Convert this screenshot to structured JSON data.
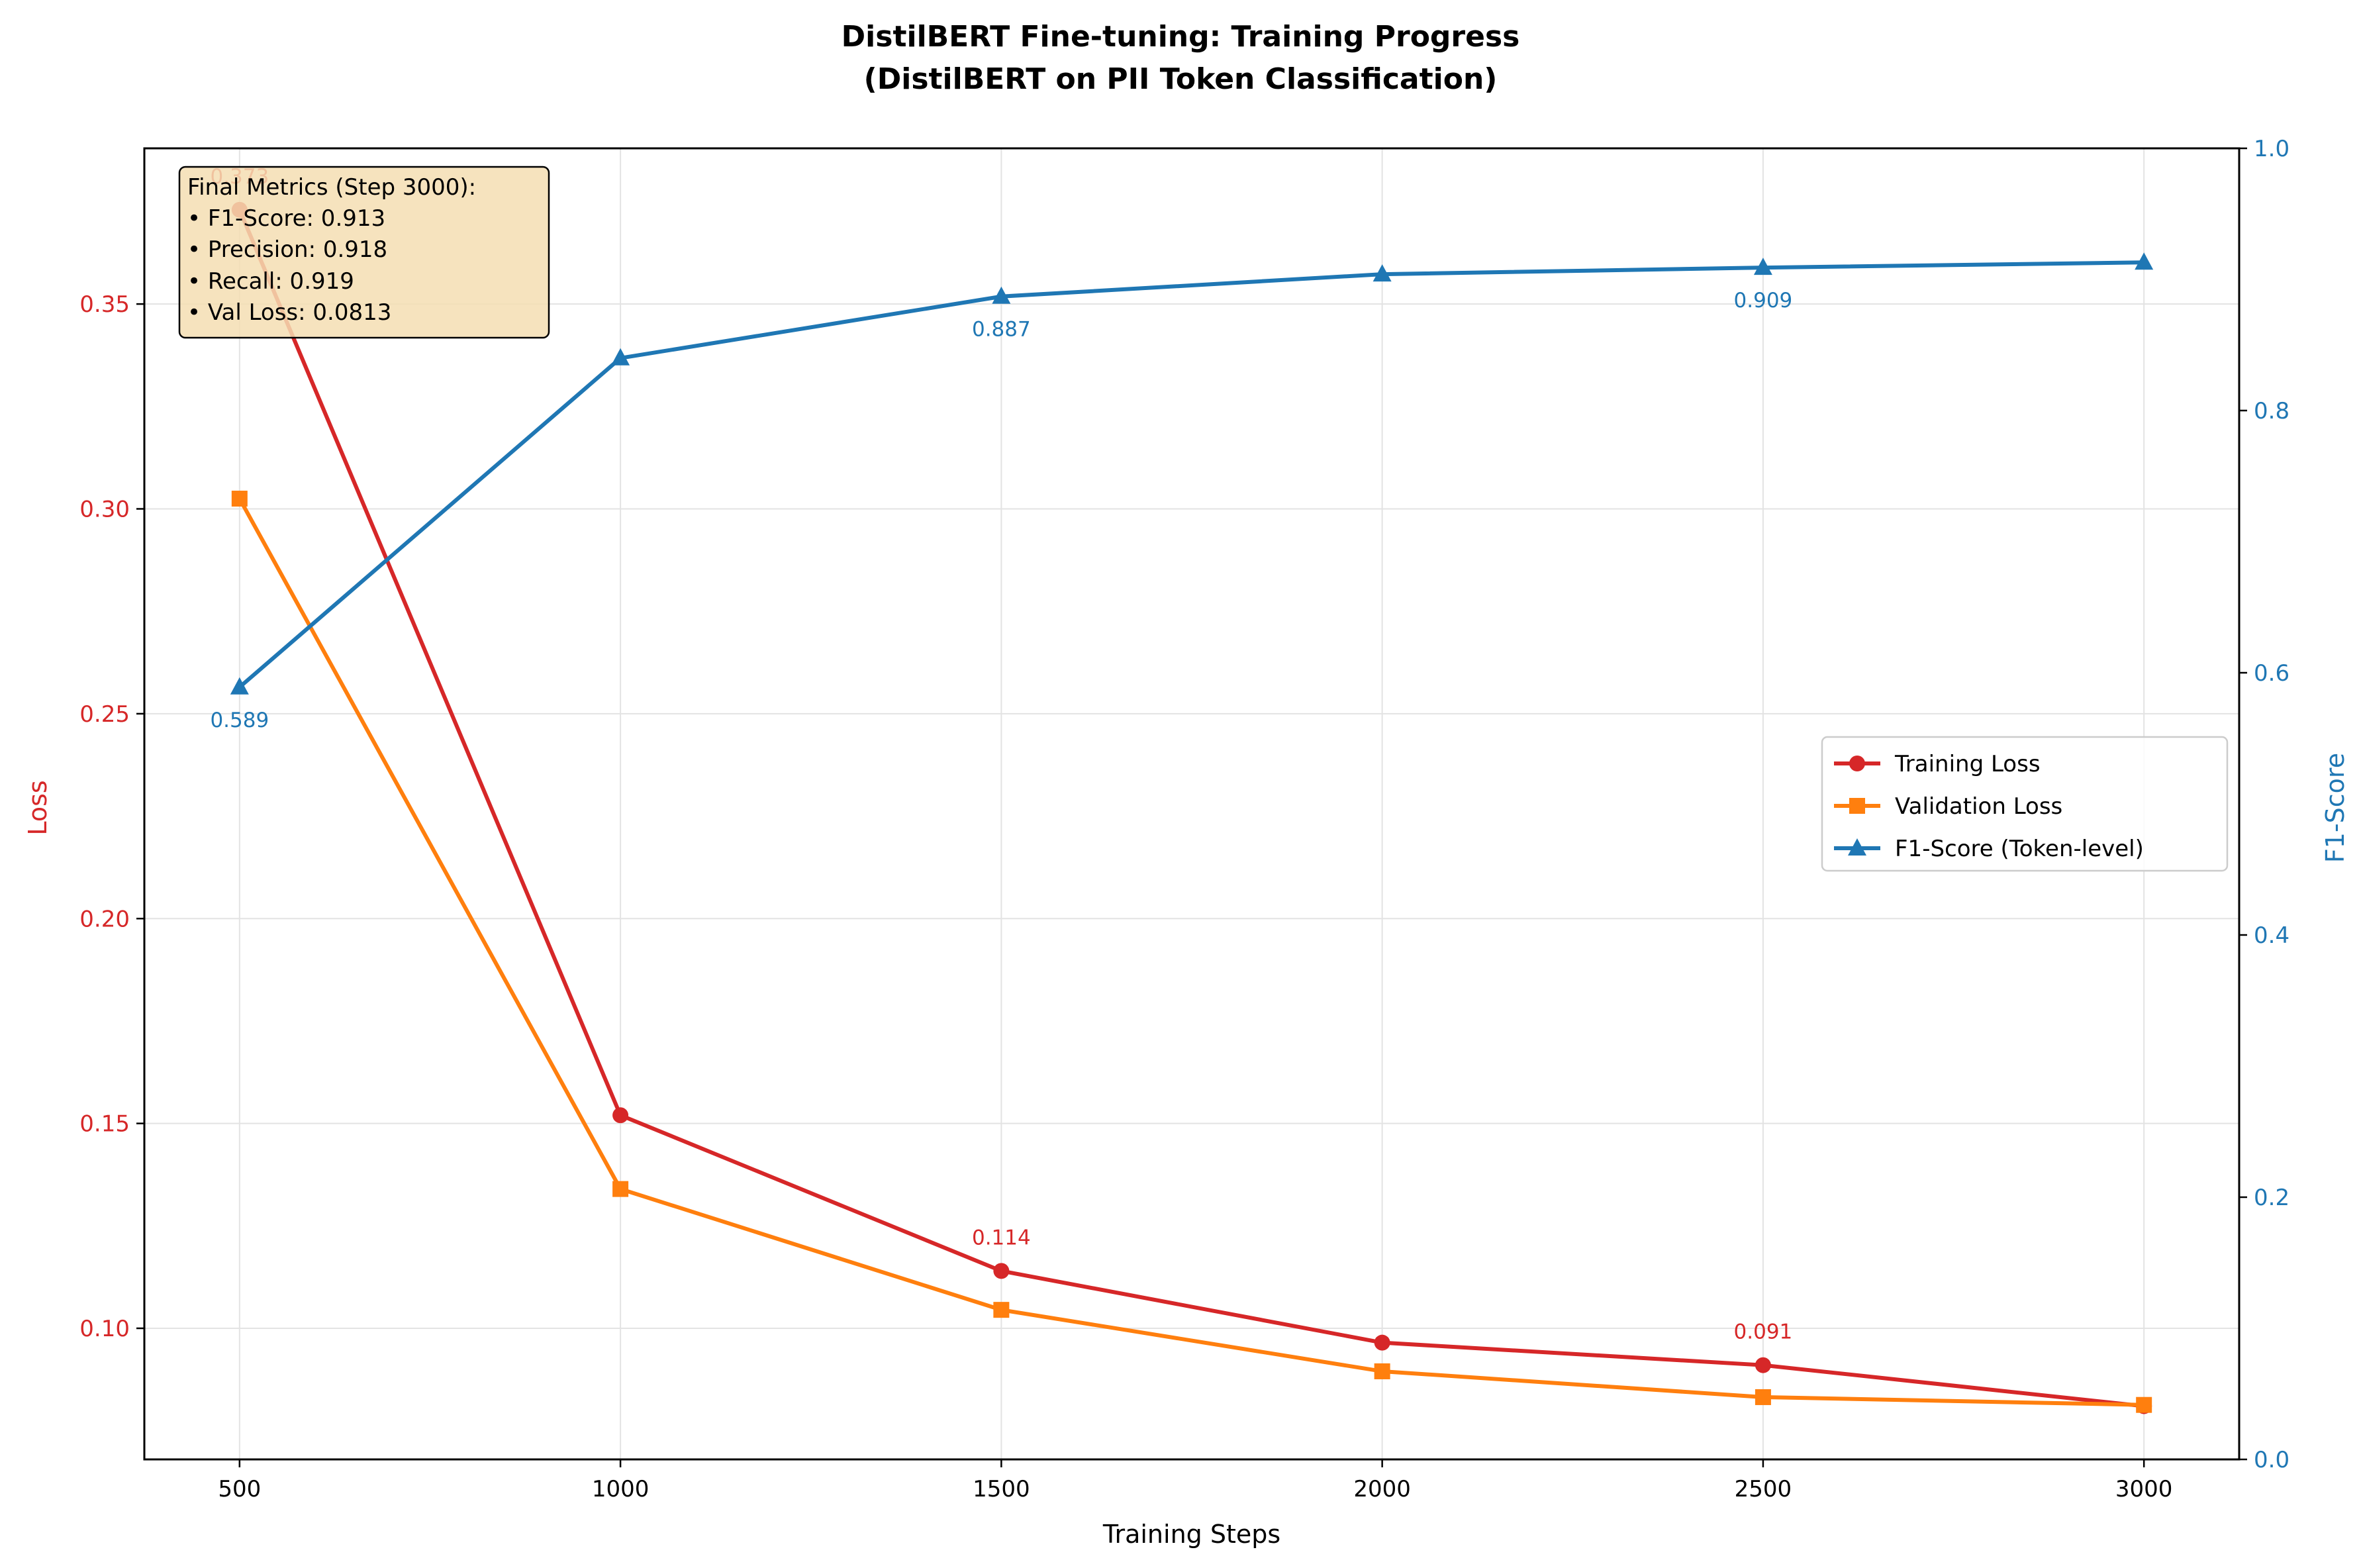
{
  "chart_data": {
    "type": "line",
    "title_line1": "DistilBERT Fine-tuning: Training Progress",
    "title_line2": "(DistilBERT on PII Token Classification)",
    "xlabel": "Training Steps",
    "ylabel_left": "Loss",
    "ylabel_right": "F1-Score",
    "x": [
      500,
      1000,
      1500,
      2000,
      2500,
      3000
    ],
    "xlim": [
      375,
      3125
    ],
    "ylim_left": [
      0.068,
      0.388
    ],
    "ylim_right": [
      0.0,
      1.0
    ],
    "x_ticks": [
      500,
      1000,
      1500,
      2000,
      2500,
      3000
    ],
    "x_tick_labels": [
      "500",
      "1000",
      "1500",
      "2000",
      "2500",
      "3000"
    ],
    "y_left_ticks": [
      0.1,
      0.15,
      0.2,
      0.25,
      0.3,
      0.35
    ],
    "y_left_tick_labels": [
      "0.10",
      "0.15",
      "0.20",
      "0.25",
      "0.30",
      "0.35"
    ],
    "y_right_ticks": [
      0.0,
      0.2,
      0.4,
      0.6,
      0.8,
      1.0
    ],
    "y_right_tick_labels": [
      "0.0",
      "0.2",
      "0.4",
      "0.6",
      "0.8",
      "1.0"
    ],
    "grid": true,
    "series": [
      {
        "name": "Training Loss",
        "axis": "left",
        "color": "#d62728",
        "marker": "circle",
        "values": [
          0.373,
          0.152,
          0.114,
          0.0965,
          0.091,
          0.081
        ]
      },
      {
        "name": "Validation Loss",
        "axis": "left",
        "color": "#ff7f0e",
        "marker": "square",
        "values": [
          0.3025,
          0.134,
          0.1045,
          0.0895,
          0.0832,
          0.0813
        ]
      },
      {
        "name": "F1-Score (Token-level)",
        "axis": "right",
        "color": "#1f77b4",
        "marker": "triangle",
        "values": [
          0.589,
          0.84,
          0.887,
          0.904,
          0.909,
          0.913
        ]
      }
    ],
    "annotations": [
      {
        "series": 0,
        "index": 0,
        "text": "0.373",
        "position": "above"
      },
      {
        "series": 0,
        "index": 2,
        "text": "0.114",
        "position": "above"
      },
      {
        "series": 0,
        "index": 4,
        "text": "0.091",
        "position": "above"
      },
      {
        "series": 2,
        "index": 0,
        "text": "0.589",
        "position": "below"
      },
      {
        "series": 2,
        "index": 2,
        "text": "0.887",
        "position": "below"
      },
      {
        "series": 2,
        "index": 4,
        "text": "0.909",
        "position": "below"
      }
    ],
    "legend_position": "center-right",
    "metrics_box": {
      "position": "top-left",
      "lines": [
        "Final Metrics (Step 3000):",
        "• F1-Score: 0.913",
        "• Precision: 0.918",
        "• Recall: 0.919",
        "• Val Loss: 0.0813"
      ]
    }
  }
}
